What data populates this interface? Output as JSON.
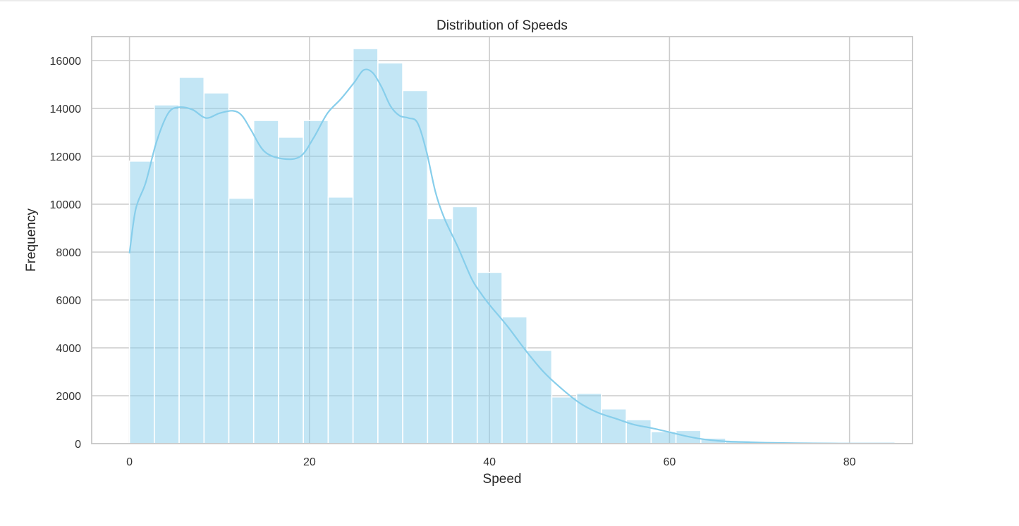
{
  "chart_data": {
    "type": "bar",
    "subtype": "histogram with kde line",
    "title": "Distribution of Speeds",
    "xlabel": "Speed",
    "ylabel": "Frequency",
    "xlim": [
      -4.2,
      87
    ],
    "ylim": [
      0,
      17000
    ],
    "xticks": [
      0,
      20,
      40,
      60,
      80
    ],
    "yticks": [
      0,
      2000,
      4000,
      6000,
      8000,
      10000,
      12000,
      14000,
      16000
    ],
    "grid": true,
    "legend": "none",
    "bar_color": "#87ceeb",
    "bin_width": 2.76,
    "bins": [
      {
        "x": 0.0,
        "count": 11800
      },
      {
        "x": 2.76,
        "count": 14150
      },
      {
        "x": 5.52,
        "count": 15300
      },
      {
        "x": 8.28,
        "count": 14650
      },
      {
        "x": 11.04,
        "count": 10250
      },
      {
        "x": 13.8,
        "count": 13500
      },
      {
        "x": 16.56,
        "count": 12800
      },
      {
        "x": 19.32,
        "count": 13500
      },
      {
        "x": 22.08,
        "count": 10300
      },
      {
        "x": 24.84,
        "count": 16500
      },
      {
        "x": 27.6,
        "count": 15900
      },
      {
        "x": 30.36,
        "count": 14750
      },
      {
        "x": 33.12,
        "count": 9400
      },
      {
        "x": 35.88,
        "count": 9900
      },
      {
        "x": 38.64,
        "count": 7150
      },
      {
        "x": 41.4,
        "count": 5300
      },
      {
        "x": 44.16,
        "count": 3900
      },
      {
        "x": 46.92,
        "count": 1950
      },
      {
        "x": 49.68,
        "count": 2100
      },
      {
        "x": 52.44,
        "count": 1450
      },
      {
        "x": 55.2,
        "count": 1000
      },
      {
        "x": 57.96,
        "count": 500
      },
      {
        "x": 60.72,
        "count": 550
      },
      {
        "x": 63.48,
        "count": 230
      },
      {
        "x": 66.24,
        "count": 120
      },
      {
        "x": 69.0,
        "count": 70
      },
      {
        "x": 71.76,
        "count": 40
      },
      {
        "x": 74.52,
        "count": 25
      },
      {
        "x": 77.28,
        "count": 15
      },
      {
        "x": 80.04,
        "count": 10
      },
      {
        "x": 82.8,
        "count": 5
      }
    ],
    "kde": {
      "x": [
        0,
        0.7,
        1.8,
        3,
        4.3,
        5.5,
        7,
        8.5,
        10,
        11.5,
        12.5,
        13.5,
        15,
        17,
        19,
        20.5,
        22,
        23.5,
        25,
        26,
        27,
        28,
        29,
        30,
        31,
        32,
        33,
        34,
        35,
        36.5,
        38,
        39,
        40,
        42,
        44,
        46,
        48,
        50,
        52,
        54,
        56,
        58,
        60,
        62,
        64,
        66,
        68,
        70,
        72,
        75,
        78,
        80,
        83,
        85
      ],
      "y": [
        7950,
        9800,
        10900,
        12600,
        13800,
        14050,
        13950,
        13600,
        13800,
        13900,
        13700,
        13100,
        12200,
        11900,
        12000,
        12800,
        13800,
        14400,
        15100,
        15600,
        15500,
        14900,
        14100,
        13700,
        13600,
        13400,
        12200,
        10500,
        9400,
        8200,
        6900,
        6300,
        5800,
        4900,
        3900,
        3000,
        2300,
        1700,
        1300,
        1050,
        800,
        650,
        480,
        300,
        170,
        100,
        70,
        45,
        30,
        15,
        8,
        5,
        3,
        2
      ]
    }
  }
}
